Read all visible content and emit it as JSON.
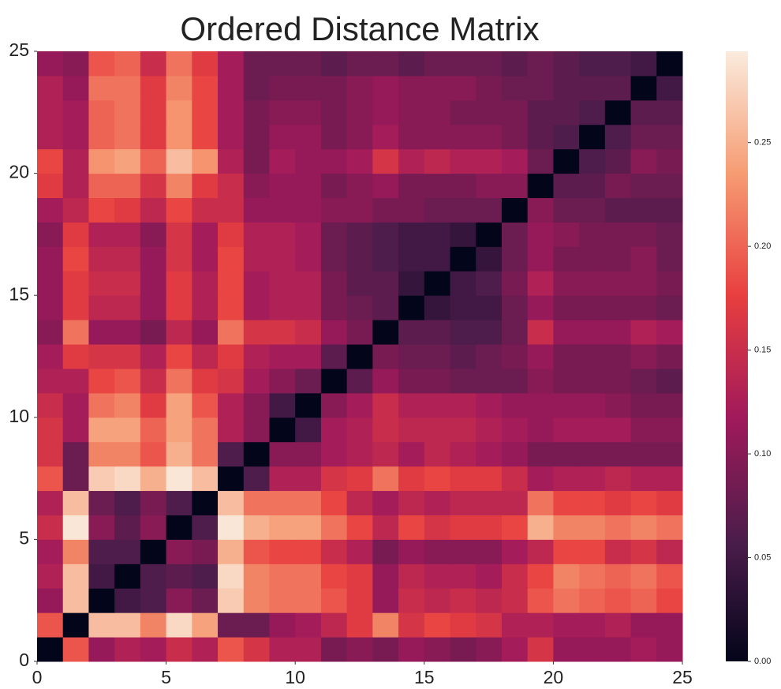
{
  "chart_data": {
    "type": "heatmap",
    "title": "Ordered Distance Matrix",
    "xlim": [
      0,
      25
    ],
    "ylim": [
      0,
      25
    ],
    "xticks": [
      0,
      5,
      10,
      15,
      20,
      25
    ],
    "yticks": [
      0,
      5,
      10,
      15,
      20,
      25
    ],
    "zlim": [
      0,
      0.294
    ],
    "zticks": [
      {
        "value": 0,
        "label": "0.00"
      },
      0.05,
      {
        "value": 0.1,
        "label": "0.10"
      },
      0.15,
      {
        "value": 0.2,
        "label": "0.20"
      },
      0.25
    ],
    "colorscale": [
      "#03051a",
      "#4c1d4b",
      "#a11a5b",
      "#e83f3f",
      "#f69c73",
      "#faebdd"
    ],
    "z": [
      [
        0,
        0.19,
        0.11,
        0.13,
        0.12,
        0.15,
        0.13,
        0.19,
        0.16,
        0.13,
        0.13,
        0.09,
        0.1,
        0.09,
        0.11,
        0.1,
        0.09,
        0.1,
        0.12,
        0.16,
        0.11,
        0.11,
        0.11,
        0.12,
        0.11
      ],
      [
        0.19,
        0,
        0.26,
        0.26,
        0.22,
        0.28,
        0.24,
        0.08,
        0.08,
        0.11,
        0.12,
        0.14,
        0.17,
        0.22,
        0.16,
        0.18,
        0.17,
        0.16,
        0.13,
        0.13,
        0.12,
        0.12,
        0.13,
        0.11,
        0.11
      ],
      [
        0.11,
        0.26,
        0,
        0.05,
        0.06,
        0.1,
        0.08,
        0.27,
        0.22,
        0.21,
        0.21,
        0.19,
        0.17,
        0.11,
        0.15,
        0.14,
        0.15,
        0.14,
        0.15,
        0.19,
        0.21,
        0.2,
        0.19,
        0.2,
        0.18
      ],
      [
        0.13,
        0.26,
        0.05,
        0,
        0.06,
        0.07,
        0.06,
        0.28,
        0.22,
        0.21,
        0.21,
        0.18,
        0.17,
        0.11,
        0.14,
        0.13,
        0.13,
        0.12,
        0.15,
        0.18,
        0.22,
        0.21,
        0.2,
        0.21,
        0.19
      ],
      [
        0.12,
        0.22,
        0.06,
        0.06,
        0,
        0.1,
        0.09,
        0.25,
        0.19,
        0.18,
        0.18,
        0.15,
        0.13,
        0.09,
        0.11,
        0.1,
        0.1,
        0.1,
        0.12,
        0.14,
        0.18,
        0.18,
        0.15,
        0.16,
        0.14
      ],
      [
        0.15,
        0.29,
        0.1,
        0.07,
        0.1,
        0,
        0.06,
        0.29,
        0.25,
        0.24,
        0.24,
        0.21,
        0.18,
        0.14,
        0.18,
        0.16,
        0.17,
        0.17,
        0.18,
        0.25,
        0.22,
        0.22,
        0.21,
        0.22,
        0.21
      ],
      [
        0.13,
        0.26,
        0.08,
        0.06,
        0.09,
        0.06,
        0,
        0.26,
        0.21,
        0.21,
        0.21,
        0.18,
        0.14,
        0.12,
        0.14,
        0.13,
        0.14,
        0.14,
        0.14,
        0.21,
        0.18,
        0.18,
        0.17,
        0.18,
        0.17
      ],
      [
        0.19,
        0.08,
        0.27,
        0.28,
        0.25,
        0.29,
        0.26,
        0,
        0.06,
        0.13,
        0.13,
        0.16,
        0.17,
        0.21,
        0.17,
        0.18,
        0.17,
        0.17,
        0.15,
        0.12,
        0.13,
        0.13,
        0.14,
        0.13,
        0.13
      ],
      [
        0.16,
        0.08,
        0.22,
        0.22,
        0.19,
        0.25,
        0.21,
        0.06,
        0,
        0.1,
        0.1,
        0.12,
        0.13,
        0.14,
        0.12,
        0.14,
        0.13,
        0.12,
        0.11,
        0.09,
        0.09,
        0.09,
        0.09,
        0.09,
        0.09
      ],
      [
        0.16,
        0.12,
        0.24,
        0.24,
        0.2,
        0.24,
        0.21,
        0.13,
        0.1,
        0,
        0.05,
        0.12,
        0.13,
        0.15,
        0.14,
        0.14,
        0.14,
        0.13,
        0.12,
        0.11,
        0.12,
        0.12,
        0.12,
        0.1,
        0.1
      ],
      [
        0.15,
        0.12,
        0.21,
        0.22,
        0.17,
        0.24,
        0.19,
        0.13,
        0.1,
        0.05,
        0,
        0.1,
        0.12,
        0.15,
        0.13,
        0.13,
        0.13,
        0.12,
        0.11,
        0.11,
        0.11,
        0.11,
        0.1,
        0.09,
        0.09
      ],
      [
        0.13,
        0.13,
        0.18,
        0.19,
        0.15,
        0.21,
        0.17,
        0.16,
        0.12,
        0.1,
        0.08,
        0,
        0.07,
        0.11,
        0.09,
        0.09,
        0.08,
        0.08,
        0.08,
        0.1,
        0.09,
        0.09,
        0.09,
        0.08,
        0.07
      ],
      [
        0.12,
        0.17,
        0.16,
        0.16,
        0.13,
        0.18,
        0.14,
        0.17,
        0.13,
        0.12,
        0.12,
        0.07,
        0,
        0.09,
        0.08,
        0.08,
        0.07,
        0.08,
        0.09,
        0.11,
        0.09,
        0.09,
        0.09,
        0.1,
        0.09
      ],
      [
        0.1,
        0.21,
        0.11,
        0.11,
        0.09,
        0.14,
        0.11,
        0.21,
        0.16,
        0.16,
        0.15,
        0.11,
        0.09,
        0,
        0.07,
        0.07,
        0.06,
        0.06,
        0.08,
        0.15,
        0.11,
        0.11,
        0.11,
        0.13,
        0.12
      ],
      [
        0.11,
        0.17,
        0.14,
        0.14,
        0.11,
        0.17,
        0.13,
        0.18,
        0.12,
        0.13,
        0.13,
        0.09,
        0.08,
        0.07,
        0,
        0.04,
        0.05,
        0.05,
        0.08,
        0.11,
        0.09,
        0.09,
        0.09,
        0.09,
        0.08
      ],
      [
        0.11,
        0.17,
        0.15,
        0.15,
        0.11,
        0.17,
        0.13,
        0.18,
        0.12,
        0.13,
        0.13,
        0.09,
        0.07,
        0.07,
        0.04,
        0,
        0.05,
        0.06,
        0.09,
        0.13,
        0.1,
        0.1,
        0.1,
        0.1,
        0.09
      ],
      [
        0.11,
        0.18,
        0.14,
        0.14,
        0.11,
        0.16,
        0.12,
        0.18,
        0.13,
        0.13,
        0.12,
        0.08,
        0.07,
        0.06,
        0.05,
        0.05,
        0,
        0.04,
        0.08,
        0.11,
        0.09,
        0.09,
        0.09,
        0.1,
        0.08
      ],
      [
        0.1,
        0.17,
        0.13,
        0.13,
        0.1,
        0.16,
        0.12,
        0.17,
        0.13,
        0.13,
        0.12,
        0.08,
        0.07,
        0.06,
        0.05,
        0.05,
        0.04,
        0,
        0.08,
        0.11,
        0.1,
        0.09,
        0.09,
        0.09,
        0.08
      ],
      [
        0.12,
        0.14,
        0.18,
        0.17,
        0.14,
        0.18,
        0.15,
        0.15,
        0.11,
        0.11,
        0.11,
        0.1,
        0.1,
        0.09,
        0.09,
        0.08,
        0.08,
        0.08,
        0,
        0.1,
        0.08,
        0.08,
        0.07,
        0.07,
        0.07
      ],
      [
        0.17,
        0.13,
        0.2,
        0.2,
        0.16,
        0.22,
        0.17,
        0.15,
        0.1,
        0.11,
        0.11,
        0.09,
        0.1,
        0.11,
        0.09,
        0.09,
        0.09,
        0.1,
        0.1,
        0,
        0.07,
        0.07,
        0.09,
        0.08,
        0.08
      ],
      [
        0.18,
        0.13,
        0.23,
        0.24,
        0.2,
        0.26,
        0.23,
        0.13,
        0.09,
        0.12,
        0.11,
        0.11,
        0.12,
        0.16,
        0.13,
        0.14,
        0.13,
        0.13,
        0.12,
        0.08,
        0,
        0.06,
        0.07,
        0.1,
        0.09
      ],
      [
        0.13,
        0.12,
        0.2,
        0.21,
        0.17,
        0.23,
        0.18,
        0.12,
        0.09,
        0.11,
        0.11,
        0.09,
        0.1,
        0.12,
        0.1,
        0.1,
        0.1,
        0.1,
        0.09,
        0.07,
        0.06,
        0,
        0.06,
        0.08,
        0.08
      ],
      [
        0.13,
        0.12,
        0.2,
        0.21,
        0.17,
        0.23,
        0.18,
        0.12,
        0.09,
        0.1,
        0.1,
        0.09,
        0.1,
        0.11,
        0.1,
        0.1,
        0.09,
        0.09,
        0.09,
        0.07,
        0.07,
        0.06,
        0,
        0.07,
        0.07
      ],
      [
        0.13,
        0.11,
        0.21,
        0.21,
        0.17,
        0.22,
        0.18,
        0.12,
        0.08,
        0.09,
        0.09,
        0.09,
        0.1,
        0.11,
        0.1,
        0.1,
        0.1,
        0.09,
        0.08,
        0.08,
        0.07,
        0.07,
        0.07,
        0,
        0.05
      ],
      [
        0.11,
        0.1,
        0.19,
        0.2,
        0.15,
        0.21,
        0.17,
        0.12,
        0.08,
        0.08,
        0.08,
        0.07,
        0.08,
        0.08,
        0.07,
        0.08,
        0.08,
        0.08,
        0.07,
        0.08,
        0.07,
        0.06,
        0.06,
        0.05,
        0
      ]
    ]
  }
}
